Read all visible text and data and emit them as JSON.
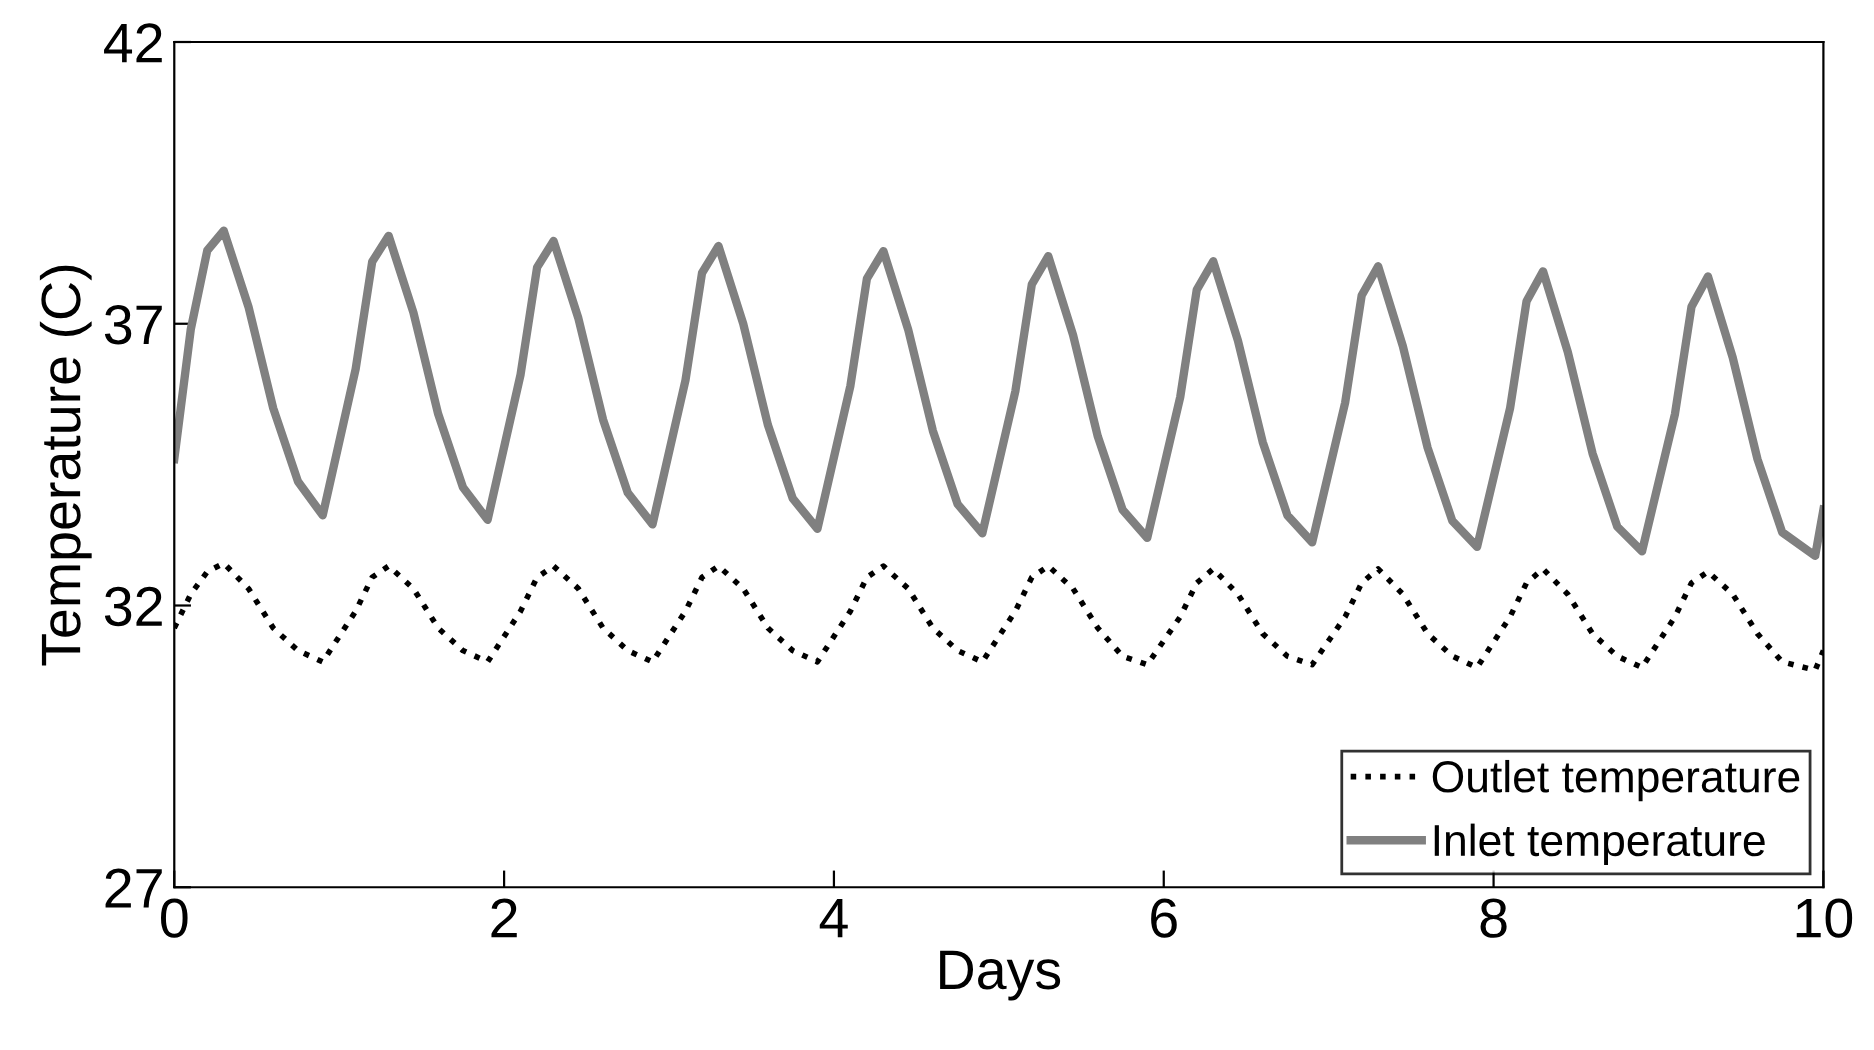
{
  "chart_data": {
    "type": "line",
    "xlabel": "Days",
    "ylabel": "Temperature (C)",
    "xlim": [
      0,
      10
    ],
    "ylim": [
      27,
      42
    ],
    "xticks": [
      0,
      2,
      4,
      6,
      8,
      10
    ],
    "yticks": [
      27,
      32,
      37,
      42
    ],
    "grid": false,
    "legend": "bottom right",
    "marker": "none",
    "series": [
      {
        "name": "Outlet temperature",
        "color": "#000000",
        "line_style": "dotted",
        "x": [
          0,
          0.1,
          0.2,
          0.3,
          0.45,
          0.6,
          0.75,
          0.9,
          1.1,
          1.2,
          1.3,
          1.45,
          1.6,
          1.75,
          1.9,
          2.1,
          2.2,
          2.3,
          2.45,
          2.6,
          2.75,
          2.9,
          3.1,
          3.2,
          3.3,
          3.45,
          3.6,
          3.75,
          3.9,
          4.1,
          4.2,
          4.3,
          4.45,
          4.6,
          4.75,
          4.9,
          5.1,
          5.2,
          5.3,
          5.45,
          5.6,
          5.75,
          5.9,
          6.1,
          6.2,
          6.3,
          6.45,
          6.6,
          6.75,
          6.9,
          7.1,
          7.2,
          7.3,
          7.45,
          7.6,
          7.75,
          7.9,
          8.1,
          8.2,
          8.3,
          8.45,
          8.6,
          8.75,
          8.9,
          9.1,
          9.2,
          9.3,
          9.45,
          9.6,
          9.75,
          9.95,
          10
        ],
        "values": [
          31.6,
          32.2,
          32.6,
          32.75,
          32.3,
          31.6,
          31.2,
          31.0,
          31.9,
          32.5,
          32.7,
          32.3,
          31.6,
          31.2,
          31.0,
          31.9,
          32.5,
          32.7,
          32.3,
          31.6,
          31.2,
          31.0,
          31.9,
          32.5,
          32.7,
          32.3,
          31.6,
          31.2,
          31.0,
          31.9,
          32.5,
          32.7,
          32.3,
          31.6,
          31.2,
          31.0,
          31.9,
          32.5,
          32.7,
          32.3,
          31.6,
          31.1,
          30.95,
          31.8,
          32.4,
          32.65,
          32.2,
          31.5,
          31.1,
          30.95,
          31.8,
          32.4,
          32.65,
          32.2,
          31.5,
          31.1,
          30.9,
          31.8,
          32.4,
          32.65,
          32.2,
          31.5,
          31.1,
          30.9,
          31.8,
          32.4,
          32.6,
          32.2,
          31.5,
          31.0,
          30.85,
          31.2
        ]
      },
      {
        "name": "Inlet temperature",
        "color": "#808080",
        "line_style": "solid",
        "x": [
          0,
          0.1,
          0.2,
          0.3,
          0.45,
          0.6,
          0.75,
          0.9,
          1.1,
          1.2,
          1.3,
          1.45,
          1.6,
          1.75,
          1.9,
          2.1,
          2.2,
          2.3,
          2.45,
          2.6,
          2.75,
          2.9,
          3.1,
          3.2,
          3.3,
          3.45,
          3.6,
          3.75,
          3.9,
          4.1,
          4.2,
          4.3,
          4.45,
          4.6,
          4.75,
          4.9,
          5.1,
          5.2,
          5.3,
          5.45,
          5.6,
          5.75,
          5.9,
          6.1,
          6.2,
          6.3,
          6.45,
          6.6,
          6.75,
          6.9,
          7.1,
          7.2,
          7.3,
          7.45,
          7.6,
          7.75,
          7.9,
          8.1,
          8.2,
          8.3,
          8.45,
          8.6,
          8.75,
          8.9,
          9.1,
          9.2,
          9.3,
          9.45,
          9.6,
          9.75,
          9.95,
          10
        ],
        "values": [
          34.6,
          36.9,
          38.3,
          38.65,
          37.3,
          35.5,
          34.2,
          33.6,
          36.2,
          38.1,
          38.56,
          37.2,
          35.4,
          34.1,
          33.52,
          36.1,
          38.0,
          38.47,
          37.1,
          35.3,
          34.0,
          33.44,
          36.0,
          37.9,
          38.38,
          37.0,
          35.2,
          33.9,
          33.36,
          35.9,
          37.8,
          38.29,
          36.9,
          35.1,
          33.8,
          33.28,
          35.8,
          37.7,
          38.2,
          36.8,
          35.0,
          33.7,
          33.2,
          35.7,
          37.6,
          38.11,
          36.7,
          34.9,
          33.6,
          33.12,
          35.6,
          37.5,
          38.02,
          36.6,
          34.8,
          33.5,
          33.04,
          35.5,
          37.4,
          37.93,
          36.5,
          34.7,
          33.4,
          32.96,
          35.4,
          37.3,
          37.84,
          36.4,
          34.6,
          33.3,
          32.88,
          33.7
        ]
      }
    ]
  }
}
